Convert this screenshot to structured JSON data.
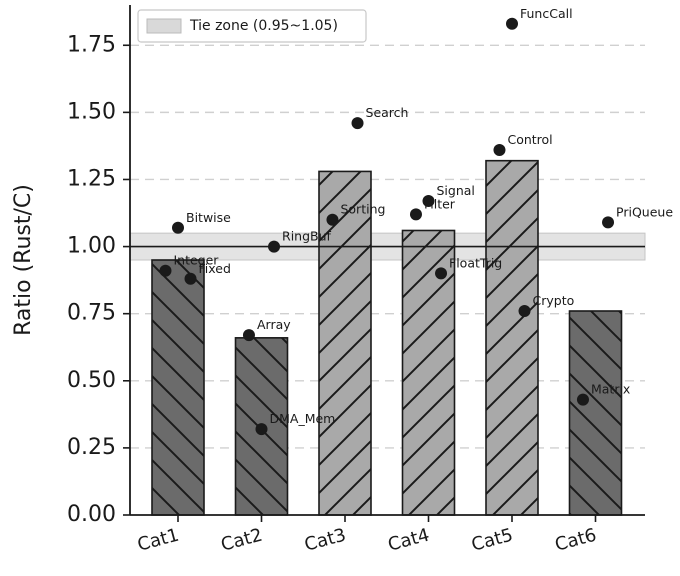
{
  "chart_data": {
    "type": "bar",
    "categories": [
      "Cat1",
      "Cat2",
      "Cat3",
      "Cat4",
      "Cat5",
      "Cat6"
    ],
    "bar_values": [
      0.95,
      0.66,
      1.28,
      1.06,
      1.32,
      0.76
    ],
    "bar_colors": [
      "#6b6b6b",
      "#6b6b6b",
      "#a9a9a9",
      "#a9a9a9",
      "#a9a9a9",
      "#6b6b6b"
    ],
    "bar_hatch": [
      "backslash",
      "backslash",
      "slash",
      "slash",
      "slash",
      "backslash"
    ],
    "points": [
      {
        "label": "Bitwise",
        "category": "Cat1",
        "offset": 0.0,
        "value": 1.07
      },
      {
        "label": "Integer",
        "category": "Cat1",
        "offset": -0.15,
        "value": 0.91
      },
      {
        "label": "Fixed",
        "category": "Cat1",
        "offset": 0.15,
        "value": 0.88
      },
      {
        "label": "RingBuf",
        "category": "Cat2",
        "offset": 0.15,
        "value": 1.0
      },
      {
        "label": "Array",
        "category": "Cat2",
        "offset": -0.15,
        "value": 0.67
      },
      {
        "label": "DMA_Mem",
        "category": "Cat2",
        "offset": 0.0,
        "value": 0.32
      },
      {
        "label": "Search",
        "category": "Cat3",
        "offset": 0.15,
        "value": 1.46
      },
      {
        "label": "Sorting",
        "category": "Cat3",
        "offset": -0.15,
        "value": 1.1
      },
      {
        "label": "Signal",
        "category": "Cat4",
        "offset": 0.0,
        "value": 1.17
      },
      {
        "label": "Filter",
        "category": "Cat4",
        "offset": -0.15,
        "value": 1.12
      },
      {
        "label": "FloatTrig",
        "category": "Cat4",
        "offset": 0.15,
        "value": 0.9
      },
      {
        "label": "FuncCall",
        "category": "Cat5",
        "offset": 0.0,
        "value": 1.83
      },
      {
        "label": "Control",
        "category": "Cat5",
        "offset": -0.15,
        "value": 1.36
      },
      {
        "label": "Crypto",
        "category": "Cat5",
        "offset": 0.15,
        "value": 0.76
      },
      {
        "label": "PriQueue",
        "category": "Cat6",
        "offset": 0.15,
        "value": 1.09
      },
      {
        "label": "Matrix",
        "category": "Cat6",
        "offset": -0.15,
        "value": 0.43
      }
    ],
    "tie_zone": {
      "min": 0.95,
      "max": 1.05,
      "label": "Tie zone (0.95~1.05)",
      "color": "#d9d9d9"
    },
    "reference_line": 1.0,
    "ylabel": "Ratio (Rust/C)",
    "xlabel": "",
    "ylim": [
      0,
      1.9
    ],
    "yticks": [
      0.0,
      0.25,
      0.5,
      0.75,
      1.0,
      1.25,
      1.5,
      1.75
    ],
    "ytick_labels": [
      "0.00",
      "0.25",
      "0.50",
      "0.75",
      "1.00",
      "1.25",
      "1.50",
      "1.75"
    ],
    "grid": "y-dashed",
    "legend_position": "top-left"
  }
}
